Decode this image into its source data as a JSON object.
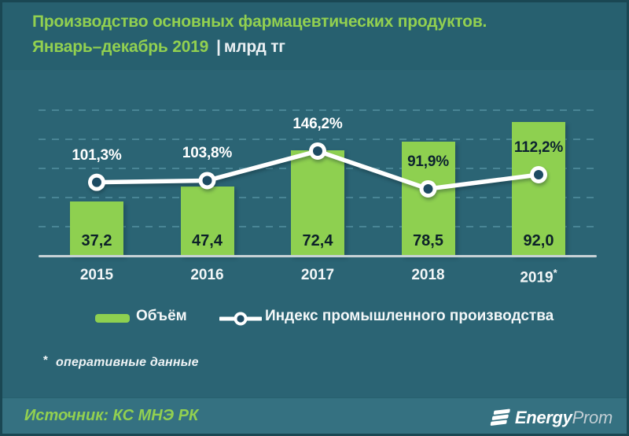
{
  "header": {
    "title_line1": "Производство основных фармацевтических продуктов.",
    "title_line2": "Январь–декабрь 2019",
    "separator": "|",
    "unit": "млрд тг"
  },
  "chart_data": {
    "type": "bar+line",
    "categories": [
      "2015",
      "2016",
      "2017",
      "2018",
      "2019*"
    ],
    "series": [
      {
        "name": "Объём",
        "type": "bar",
        "unit": "млрд тг",
        "values": [
          37.2,
          47.4,
          72.4,
          78.5,
          92.0
        ],
        "labels": [
          "37,2",
          "47,4",
          "72,4",
          "78,5",
          "92,0"
        ],
        "color": "#8ed050"
      },
      {
        "name": "Индекс промышленного производства",
        "type": "line",
        "unit": "%",
        "values": [
          101.3,
          103.8,
          146.2,
          91.9,
          112.2
        ],
        "labels": [
          "101,3%",
          "103,8%",
          "146,2%",
          "91,9%",
          "112,2%"
        ],
        "color": "#ffffff",
        "marker_inner_color": "#1d4b63"
      }
    ],
    "title": "Производство основных фармацевтических продуктов. Январь–декабрь 2019",
    "ylabel": "млрд тг",
    "bar_axis_max": 100,
    "gridline_step": 20,
    "grid": true,
    "legend_position": "bottom"
  },
  "legend": {
    "volume_label": "Объём",
    "index_label": "Индекс промышленного производства"
  },
  "footnote": {
    "marker": "*",
    "text": "оперативные данные"
  },
  "footer": {
    "source": "Источник: КС МНЭ РК",
    "logo_energy": "Energy",
    "logo_prom": "Prom"
  },
  "colors": {
    "accent_green": "#92d050",
    "bar_green": "#8ed050",
    "header_bg": "#27606f",
    "body_bg": "#2b6474",
    "footer_bg": "#357181",
    "line_white": "#ffffff",
    "marker_inner": "#1d4b63",
    "dark_value_text": "#0c2029"
  }
}
